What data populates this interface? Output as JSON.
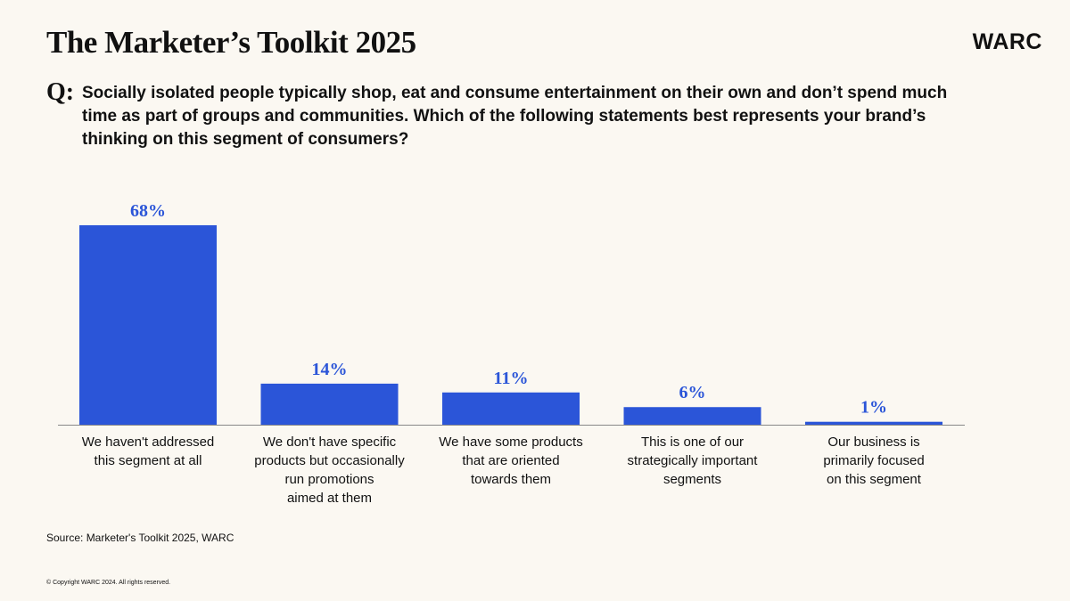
{
  "header": {
    "title": "The Marketer’s Toolkit 2025",
    "logo": "WARC",
    "q_label": "Q:",
    "question": "Socially isolated people typically shop, eat and consume entertainment on their own and don’t spend much time as part of groups and communities. Which of the following statements best represents your brand’s thinking on this segment of consumers?"
  },
  "footer": {
    "source": "Source: Marketer's Toolkit 2025, WARC",
    "copyright": "© Copyright WARC 2024. All rights reserved."
  },
  "colors": {
    "bar": "#2b55d8",
    "value_label": "#2b55d8",
    "axis": "#888888",
    "background": "#fbf8f2"
  },
  "chart_data": {
    "type": "bar",
    "categories": [
      [
        "We haven't addressed",
        "this segment at all"
      ],
      [
        "We don't have specific",
        "products but occasionally",
        "run promotions",
        "aimed at them"
      ],
      [
        "We have some products",
        "that are oriented",
        "towards them"
      ],
      [
        "This is one of our",
        "strategically important",
        "segments"
      ],
      [
        "Our business is",
        "primarily focused",
        "on this segment"
      ]
    ],
    "values": [
      68,
      14,
      11,
      6,
      1
    ],
    "value_labels": [
      "68%",
      "14%",
      "11%",
      "6%",
      "1%"
    ],
    "title": "",
    "xlabel": "",
    "ylabel": "",
    "ylim": [
      0,
      68
    ],
    "grid": false,
    "legend": "none"
  }
}
